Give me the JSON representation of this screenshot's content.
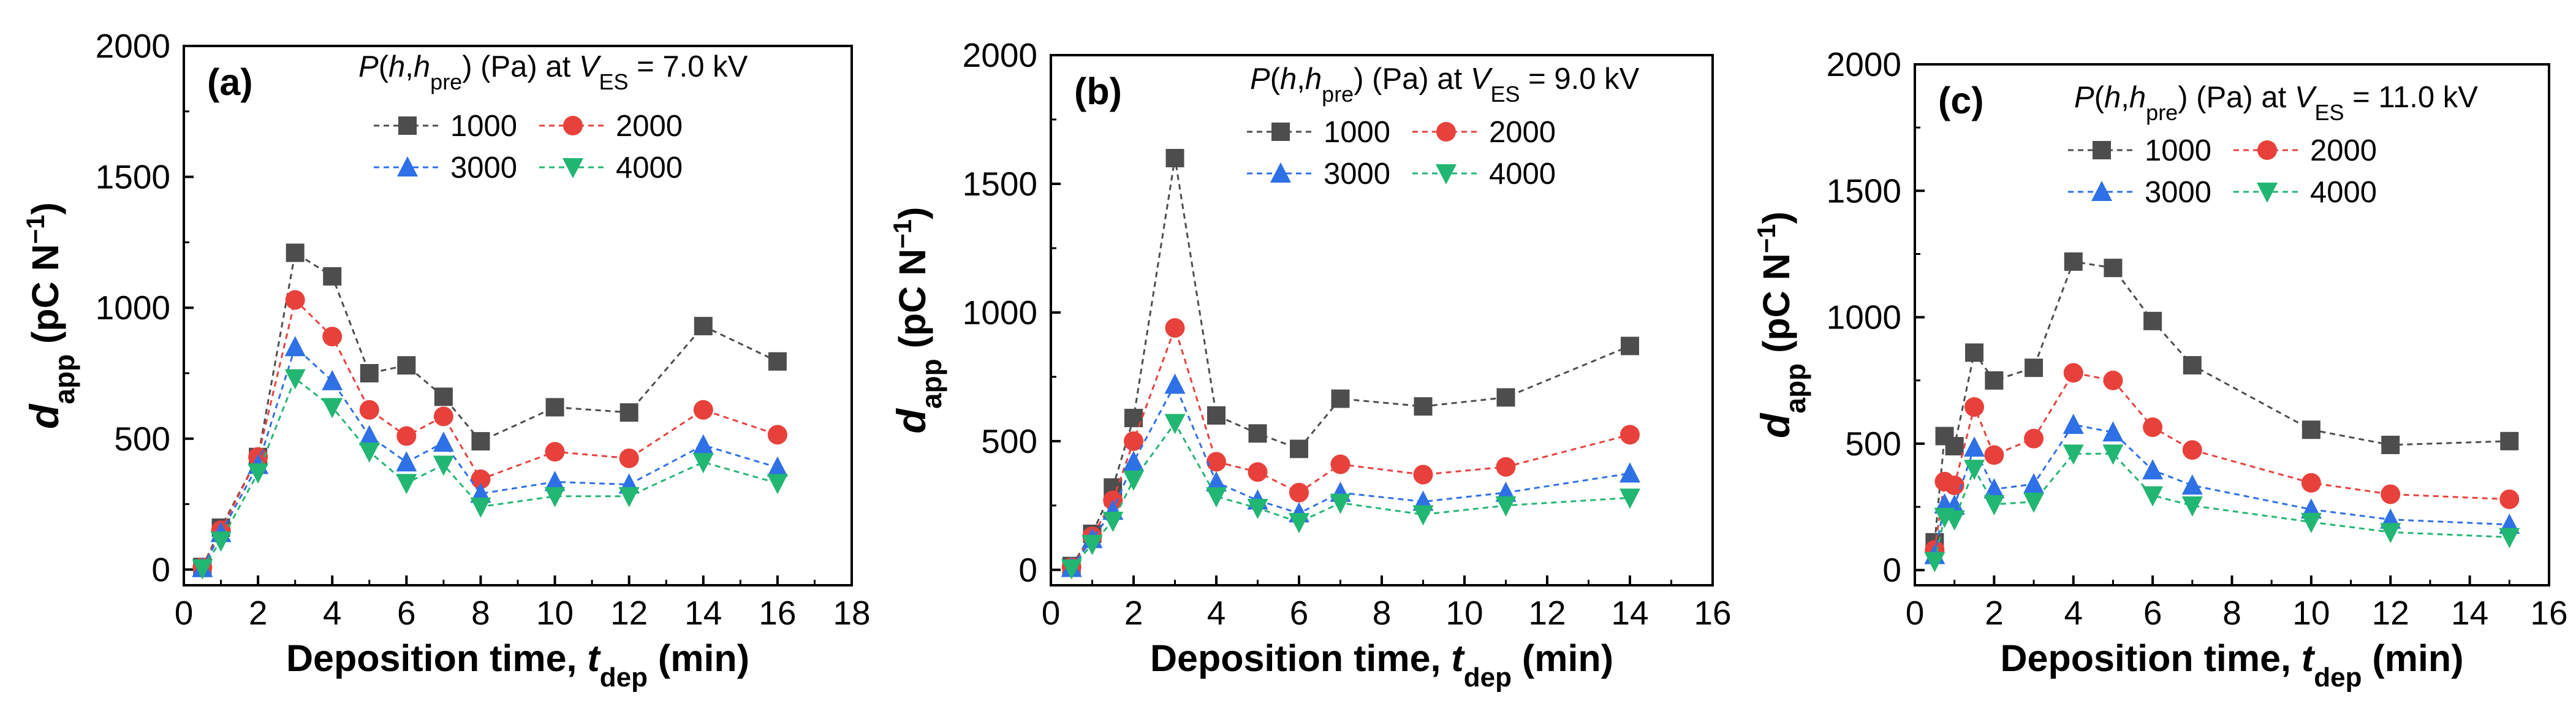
{
  "chart_data": [
    {
      "type": "line",
      "title": "",
      "panel_label": "(a)",
      "legend_title": {
        "p": "P",
        "h": "h",
        "hpre_h": "h",
        "hpre_sub": "pre",
        "unit": " (Pa) at ",
        "v": "V",
        "es": "ES",
        "value": " = 7.0 kV"
      },
      "xlabel": {
        "main": "Deposition time, ",
        "var": "t",
        "sub": "dep",
        "unit": " (min)"
      },
      "ylabel": {
        "var": "d",
        "sub": "app",
        "unit": " (pC N",
        "exp": "−1",
        "close": ")"
      },
      "xlim": [
        0,
        18
      ],
      "ylim": [
        -60,
        2000
      ],
      "xticks": [
        0,
        2,
        4,
        6,
        8,
        10,
        12,
        14,
        16,
        18
      ],
      "yticks": [
        0,
        500,
        1000,
        1500,
        2000
      ],
      "x": [
        0.5,
        1,
        2,
        3,
        4,
        5,
        6,
        7,
        8,
        10,
        12,
        14,
        16
      ],
      "series": [
        {
          "name": "1000",
          "color": "#4d4d4d",
          "marker": "square",
          "values": [
            10,
            160,
            430,
            1210,
            1120,
            750,
            780,
            660,
            490,
            620,
            600,
            930,
            795
          ]
        },
        {
          "name": "2000",
          "color": "#e8413b",
          "marker": "circle",
          "values": [
            8,
            150,
            430,
            1030,
            890,
            610,
            510,
            585,
            345,
            450,
            425,
            610,
            515
          ]
        },
        {
          "name": "3000",
          "color": "#2e70e6",
          "marker": "triangle-up",
          "values": [
            6,
            140,
            400,
            850,
            720,
            510,
            410,
            485,
            290,
            335,
            325,
            475,
            390
          ]
        },
        {
          "name": "4000",
          "color": "#22b673",
          "marker": "triangle-down",
          "values": [
            4,
            110,
            370,
            730,
            620,
            450,
            330,
            400,
            240,
            280,
            280,
            410,
            330
          ]
        }
      ]
    },
    {
      "type": "line",
      "title": "",
      "panel_label": "(b)",
      "legend_title": {
        "p": "P",
        "h": "h",
        "hpre_h": "h",
        "hpre_sub": "pre",
        "unit": " (Pa) at ",
        "v": "V",
        "es": "ES",
        "value": " = 9.0 kV"
      },
      "xlabel": {
        "main": "Deposition time, ",
        "var": "t",
        "sub": "dep",
        "unit": " (min)"
      },
      "ylabel": {
        "var": "d",
        "sub": "app",
        "unit": " (pC N",
        "exp": "−1",
        "close": ")"
      },
      "xlim": [
        0,
        16
      ],
      "ylim": [
        -60,
        2000
      ],
      "xticks": [
        0,
        2,
        4,
        6,
        8,
        10,
        12,
        14,
        16
      ],
      "yticks": [
        0,
        500,
        1000,
        1500,
        2000
      ],
      "x": [
        0.5,
        1,
        1.5,
        2,
        3,
        4,
        5,
        6,
        7,
        9,
        11,
        14
      ],
      "series": [
        {
          "name": "1000",
          "color": "#4d4d4d",
          "marker": "square",
          "values": [
            15,
            140,
            320,
            590,
            1600,
            600,
            530,
            470,
            665,
            635,
            670,
            870
          ]
        },
        {
          "name": "2000",
          "color": "#e8413b",
          "marker": "circle",
          "values": [
            10,
            130,
            270,
            500,
            940,
            420,
            380,
            300,
            410,
            370,
            400,
            525
          ]
        },
        {
          "name": "3000",
          "color": "#2e70e6",
          "marker": "triangle-up",
          "values": [
            8,
            120,
            230,
            420,
            720,
            340,
            270,
            220,
            300,
            265,
            300,
            375
          ]
        },
        {
          "name": "4000",
          "color": "#22b673",
          "marker": "triangle-down",
          "values": [
            5,
            100,
            190,
            350,
            570,
            285,
            240,
            185,
            260,
            215,
            250,
            280
          ]
        }
      ]
    },
    {
      "type": "line",
      "title": "",
      "panel_label": "(c)",
      "legend_title": {
        "p": "P",
        "h": "h",
        "hpre_h": "h",
        "hpre_sub": "pre",
        "unit": " (Pa) at ",
        "v": "V",
        "es": "ES",
        "value": " = 11.0 kV"
      },
      "xlabel": {
        "main": "Deposition time, ",
        "var": "t",
        "sub": "dep",
        "unit": " (min)"
      },
      "ylabel": {
        "var": "d",
        "sub": "app",
        "unit": " (pC N",
        "exp": "−1",
        "close": ")"
      },
      "xlim": [
        0,
        16
      ],
      "ylim": [
        -60,
        2000
      ],
      "xticks": [
        0,
        2,
        4,
        6,
        8,
        10,
        12,
        14,
        16
      ],
      "yticks": [
        0,
        500,
        1000,
        1500,
        2000
      ],
      "x": [
        0.5,
        0.75,
        1,
        1.5,
        2,
        3,
        4,
        5,
        6,
        7,
        10,
        12,
        15
      ],
      "series": [
        {
          "name": "1000",
          "color": "#4d4d4d",
          "marker": "square",
          "values": [
            110,
            530,
            490,
            860,
            750,
            800,
            1220,
            1195,
            985,
            810,
            555,
            495,
            510
          ]
        },
        {
          "name": "2000",
          "color": "#e8413b",
          "marker": "circle",
          "values": [
            80,
            350,
            335,
            645,
            455,
            520,
            780,
            750,
            565,
            475,
            345,
            300,
            280
          ]
        },
        {
          "name": "3000",
          "color": "#2e70e6",
          "marker": "triangle-up",
          "values": [
            60,
            260,
            255,
            485,
            320,
            340,
            575,
            545,
            395,
            335,
            240,
            200,
            180
          ]
        },
        {
          "name": "4000",
          "color": "#22b673",
          "marker": "triangle-down",
          "values": [
            35,
            210,
            200,
            400,
            260,
            270,
            460,
            460,
            295,
            255,
            190,
            150,
            130
          ]
        }
      ]
    }
  ]
}
